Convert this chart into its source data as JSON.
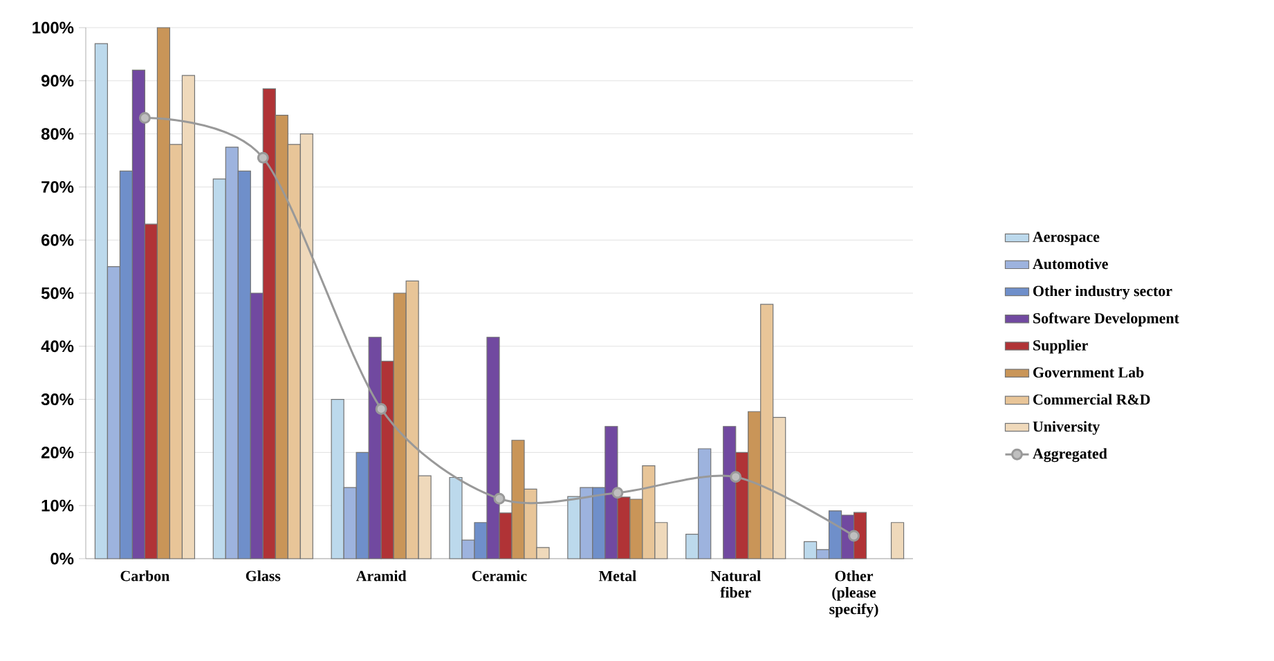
{
  "chart_data": {
    "type": "bar",
    "categories": [
      "Carbon",
      "Glass",
      "Aramid",
      "Ceramic",
      "Metal",
      "Natural fiber",
      "Other (please specify)"
    ],
    "series": [
      {
        "name": "Aerospace",
        "color": "#bcd9ec",
        "values": [
          97,
          71.5,
          30,
          15.3,
          11.7,
          4.6,
          3.2
        ]
      },
      {
        "name": "Automotive",
        "color": "#9db3de",
        "values": [
          55,
          77.5,
          13.4,
          3.5,
          13.4,
          20.7,
          1.7
        ]
      },
      {
        "name": "Other industry sector",
        "color": "#6f8fca",
        "values": [
          73,
          73,
          20,
          6.8,
          13.4,
          null,
          9
        ]
      },
      {
        "name": "Software Development",
        "color": "#7149a0",
        "values": [
          92,
          50,
          41.7,
          41.7,
          24.9,
          24.9,
          8.2
        ]
      },
      {
        "name": "Supplier",
        "color": "#b03336",
        "values": [
          63,
          88.5,
          37.2,
          8.6,
          11.6,
          20,
          8.7
        ]
      },
      {
        "name": "Government Lab",
        "color": "#c99558",
        "values": [
          100,
          83.5,
          50,
          22.3,
          11.2,
          27.7,
          null
        ]
      },
      {
        "name": "Commercial R&D",
        "color": "#e8c598",
        "values": [
          78,
          78,
          52.3,
          13.1,
          17.5,
          47.9,
          null
        ]
      },
      {
        "name": "University",
        "color": "#efd9bb",
        "values": [
          91,
          80,
          15.6,
          2.1,
          6.8,
          26.6,
          6.8
        ]
      },
      {
        "name": "Aggregated",
        "type": "line",
        "color": "#999999",
        "marker": "circle",
        "values": [
          83,
          75.5,
          28.2,
          11.3,
          12.4,
          15.4,
          4.3
        ]
      }
    ],
    "ylim": [
      0,
      100
    ],
    "yticks": [
      {
        "value": 0,
        "label": "0%"
      },
      {
        "value": 10,
        "label": "10%"
      },
      {
        "value": 20,
        "label": "20%"
      },
      {
        "value": 30,
        "label": "30%"
      },
      {
        "value": 40,
        "label": "40%"
      },
      {
        "value": 50,
        "label": "50%"
      },
      {
        "value": 60,
        "label": "60%"
      },
      {
        "value": 70,
        "label": "70%"
      },
      {
        "value": 80,
        "label": "80%"
      },
      {
        "value": 90,
        "label": "90%"
      },
      {
        "value": 100,
        "label": "100%"
      }
    ],
    "grid": "y",
    "legend": "right"
  }
}
